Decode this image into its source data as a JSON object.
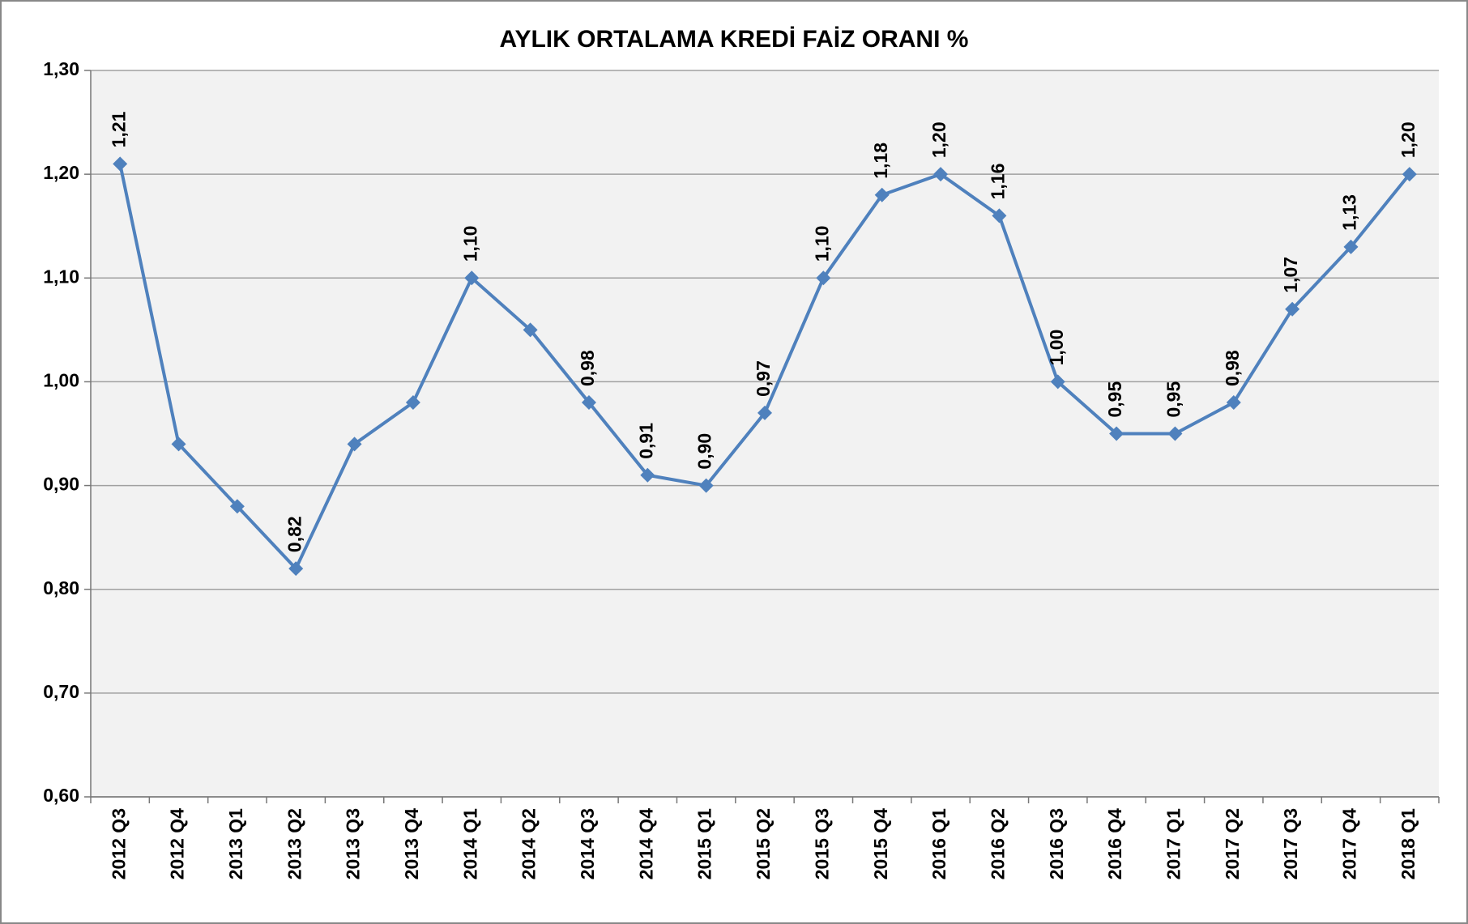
{
  "chart_data": {
    "type": "line",
    "title": "AYLIK ORTALAMA KREDİ FAİZ ORANI %",
    "categories": [
      "2012 Q3",
      "2012 Q4",
      "2013 Q1",
      "2013 Q2",
      "2013 Q3",
      "2013 Q4",
      "2014 Q1",
      "2014 Q2",
      "2014 Q3",
      "2014 Q4",
      "2015 Q1",
      "2015 Q2",
      "2015 Q3",
      "2015 Q4",
      "2016 Q1",
      "2016 Q2",
      "2016 Q3",
      "2016 Q4",
      "2017 Q1",
      "2017 Q2",
      "2017 Q3",
      "2017 Q4",
      "2018 Q1"
    ],
    "values": [
      1.21,
      0.94,
      0.88,
      0.82,
      0.94,
      0.98,
      1.1,
      1.05,
      0.98,
      0.91,
      0.9,
      0.97,
      1.1,
      1.18,
      1.2,
      1.16,
      1.0,
      0.95,
      0.95,
      0.98,
      1.07,
      1.13,
      1.2
    ],
    "value_labels": [
      "1,21",
      null,
      null,
      "0,82",
      null,
      null,
      "1,10",
      null,
      "0,98",
      "0,91",
      "0,90",
      "0,97",
      "1,10",
      "1,18",
      "1,20",
      "1,16",
      "1,00",
      "0,95",
      "0,95",
      "0,98",
      "1,07",
      "1,13",
      "1,20"
    ],
    "color": "#4f81bd",
    "ylim": [
      0.6,
      1.3
    ],
    "yticks": [
      {
        "value": 0.6,
        "label": "0,60"
      },
      {
        "value": 0.7,
        "label": "0,70"
      },
      {
        "value": 0.8,
        "label": "0,80"
      },
      {
        "value": 0.9,
        "label": "0,90"
      },
      {
        "value": 1.0,
        "label": "1,00"
      },
      {
        "value": 1.1,
        "label": "1,10"
      },
      {
        "value": 1.2,
        "label": "1,20"
      },
      {
        "value": 1.3,
        "label": "1,30"
      }
    ],
    "grid": true
  }
}
